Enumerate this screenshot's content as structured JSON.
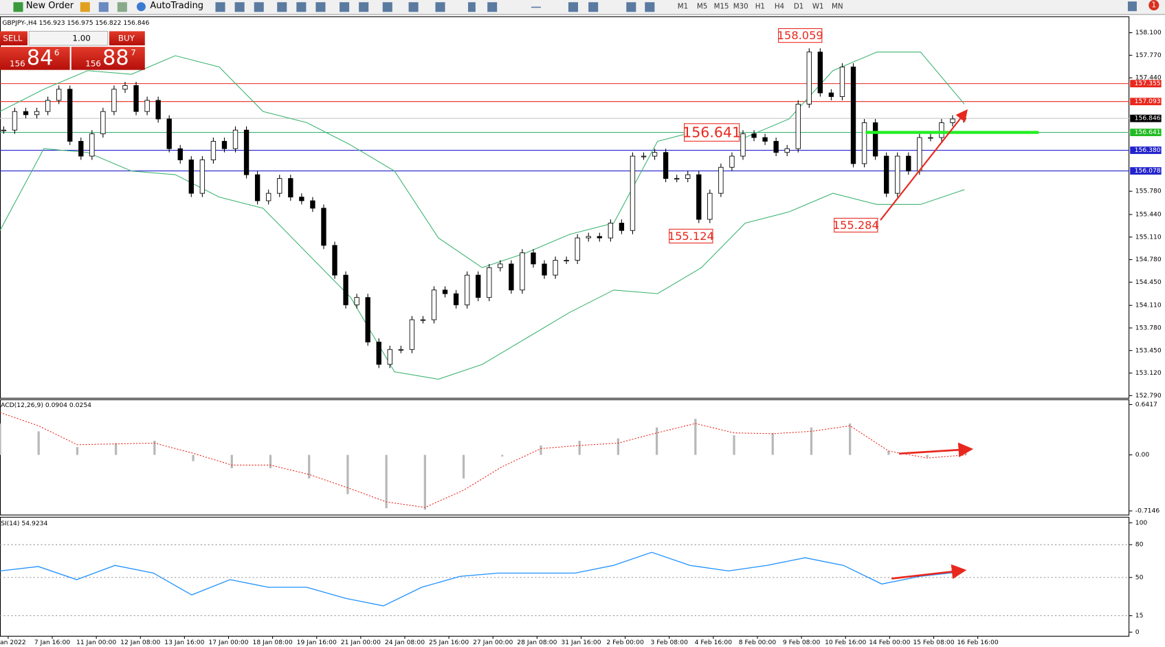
{
  "toolbar": {
    "new_order": "New Order",
    "autotrading": "AutoTrading",
    "timeframes": [
      "M1",
      "M5",
      "M15",
      "M30",
      "H1",
      "H4",
      "D1",
      "W1",
      "MN"
    ],
    "notifications": "1"
  },
  "trade_panel": {
    "sell": "SELL",
    "buy": "BUY",
    "lots": "1.00",
    "bid": {
      "big": "156",
      "pips": "84",
      "fraction": "6"
    },
    "ask": {
      "big": "156",
      "pips": "88",
      "fraction": "7"
    }
  },
  "chart_data": [
    {
      "type": "candlestick",
      "title": "GBPJPY-,H4 156.923 156.975 156.822 156.846",
      "x_labels": [
        "an 2022",
        "7 Jan 16:00",
        "11 Jan 00:00",
        "12 Jan 08:00",
        "13 Jan 16:00",
        "17 Jan 00:00",
        "18 Jan 08:00",
        "19 Jan 16:00",
        "21 Jan 00:00",
        "24 Jan 08:00",
        "25 Jan 16:00",
        "27 Jan 00:00",
        "28 Jan 08:00",
        "31 Jan 16:00",
        "2 Feb 00:00",
        "3 Feb 08:00",
        "4 Feb 16:00",
        "8 Feb 00:00",
        "9 Feb 08:00",
        "10 Feb 16:00",
        "14 Feb 00:00",
        "15 Feb 08:00",
        "16 Feb 16:00"
      ],
      "close": [
        156.675,
        156.947,
        156.9,
        156.947,
        157.11,
        157.273,
        156.511,
        156.294,
        156.62,
        156.947,
        157.273,
        157.327,
        156.947,
        157.11,
        156.838,
        156.403,
        156.239,
        155.75,
        156.239,
        156.511,
        156.403,
        156.675,
        156.022,
        155.641,
        155.75,
        155.967,
        155.695,
        155.641,
        155.532,
        154.988,
        154.553,
        154.118,
        154.226,
        153.574,
        153.247,
        153.465,
        153.465,
        153.9,
        153.9,
        154.335,
        154.281,
        154.118,
        154.553,
        154.226,
        154.662,
        154.716,
        154.335,
        154.879,
        154.716,
        154.553,
        154.77,
        154.77,
        155.097,
        155.119,
        155.097,
        155.314,
        155.206,
        156.294,
        156.294,
        156.348,
        155.967,
        155.967,
        156.022,
        155.369,
        155.75,
        156.131,
        156.294,
        156.62,
        156.566,
        156.511,
        156.348,
        156.403,
        157.055,
        157.817,
        157.219,
        157.165,
        157.599,
        156.184,
        156.783,
        156.294,
        155.75,
        156.294,
        156.076,
        156.566,
        156.566,
        156.783,
        156.838,
        156.846
      ],
      "upper_band": [
        156.947,
        157.273,
        157.545,
        157.491,
        157.763,
        157.599,
        156.947,
        156.784,
        156.457,
        156.076,
        155.097,
        154.662,
        154.879,
        155.151,
        155.314,
        156.511,
        156.675,
        156.566,
        156.838,
        157.545,
        157.817,
        157.817,
        157.055
      ],
      "lower_band": [
        155.206,
        156.403,
        156.348,
        156.076,
        156.022,
        155.695,
        155.532,
        154.879,
        154.226,
        153.138,
        153.03,
        153.247,
        153.628,
        154.009,
        154.335,
        154.281,
        154.662,
        155.314,
        155.478,
        155.75,
        155.587,
        155.587,
        155.804
      ],
      "band_color": "#3cb371",
      "ylim": [
        152.757,
        158.339
      ],
      "yticks": [
        {
          "value": 158.1,
          "label": "158.100"
        },
        {
          "value": 157.77,
          "label": "157.770"
        },
        {
          "value": 157.44,
          "label": "157.440"
        },
        {
          "value": 155.78,
          "label": "155.780"
        },
        {
          "value": 155.44,
          "label": "155.440"
        },
        {
          "value": 155.11,
          "label": "155.110"
        },
        {
          "value": 154.78,
          "label": "154.780"
        },
        {
          "value": 154.45,
          "label": "154.450"
        },
        {
          "value": 154.11,
          "label": "154.110"
        },
        {
          "value": 153.78,
          "label": "153.780"
        },
        {
          "value": 153.45,
          "label": "153.450"
        },
        {
          "value": 153.12,
          "label": "153.120"
        },
        {
          "value": 152.79,
          "label": "152.790"
        }
      ],
      "levels": [
        {
          "value": 157.355,
          "color": "#e8281e",
          "label_color": "#e8281e"
        },
        {
          "value": 157.093,
          "color": "#e8281e",
          "label_color": "#e8281e"
        },
        {
          "value": 156.846,
          "color": "#c8c8c8",
          "label_color": "#000000"
        },
        {
          "value": 156.641,
          "color": "#3cb371",
          "label_color": "#22bb22"
        },
        {
          "value": 156.38,
          "label": "156.380",
          "color": "#2222cc",
          "label_color": "#2222cc"
        },
        {
          "value": 156.078,
          "color": "#2222cc",
          "label_color": "#2222cc"
        }
      ],
      "annotations": [
        158.059,
        156.641,
        155.124,
        155.284
      ]
    },
    {
      "type": "macd",
      "title": "ACD(12,26,9) 0.0904 0.0254",
      "histogram": [
        0.4,
        0.3,
        0.1,
        0.15,
        0.18,
        -0.08,
        -0.17,
        -0.17,
        -0.3,
        -0.5,
        -0.68,
        -0.7,
        -0.3,
        -0.02,
        0.12,
        0.18,
        0.21,
        0.35,
        0.46,
        0.25,
        0.28,
        0.35,
        0.4,
        0.05,
        -0.03,
        0.02
      ],
      "signal": [
        0.54,
        0.37,
        0.13,
        0.14,
        0.15,
        0.02,
        -0.13,
        -0.13,
        -0.25,
        -0.42,
        -0.6,
        -0.67,
        -0.45,
        -0.15,
        0.08,
        0.12,
        0.15,
        0.28,
        0.4,
        0.28,
        0.27,
        0.3,
        0.37,
        0.05,
        -0.04,
        0
      ],
      "ylim": [
        -0.7146,
        0.6417
      ],
      "yticks": [
        0.6417,
        {
          "value": 0,
          "label": "0.00"
        },
        -0.7146
      ]
    },
    {
      "type": "rsi",
      "title": "SI(14) 54.9234",
      "values": [
        56,
        60,
        48,
        61,
        54,
        34,
        48,
        41,
        41,
        31,
        24,
        41,
        51,
        54,
        54,
        54,
        61,
        73,
        61,
        56,
        61,
        68,
        61,
        44,
        51,
        54.92
      ],
      "color": "#1e90ff",
      "ylim": [
        0,
        100
      ],
      "yticks": [
        100,
        80,
        50,
        15,
        0
      ],
      "levels": [
        80,
        50,
        15
      ]
    }
  ]
}
